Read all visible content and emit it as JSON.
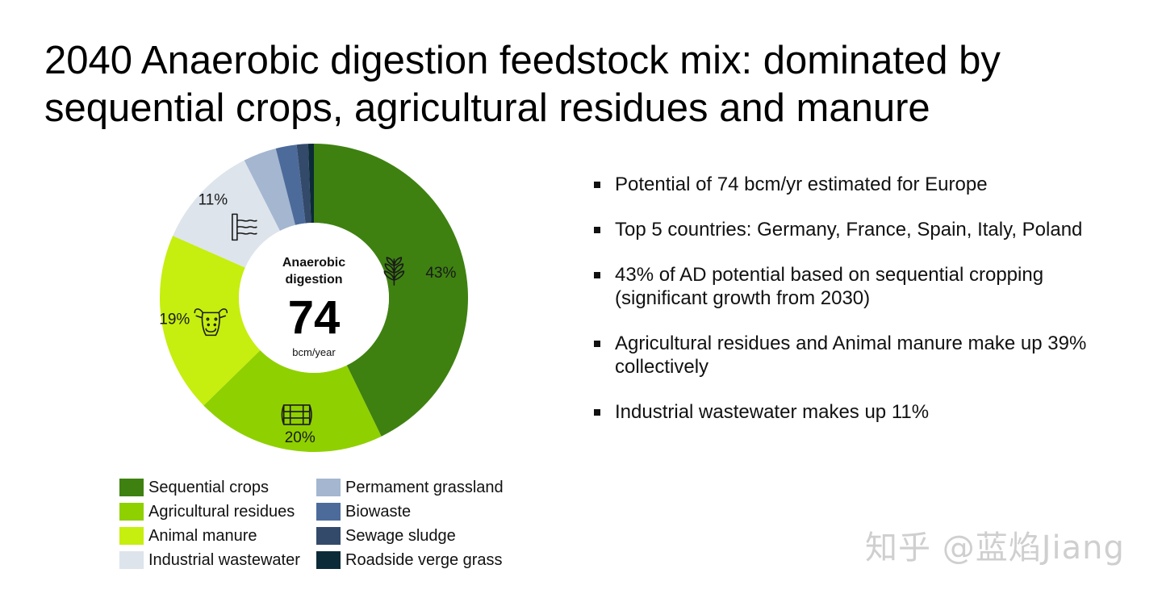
{
  "title": "2040 Anaerobic digestion feedstock mix: dominated by sequential crops, agricultural residues and manure",
  "chart_data": {
    "type": "pie",
    "donut": true,
    "center": {
      "label_line1": "Anaerobic",
      "label_line2": "digestion",
      "value": "74",
      "unit": "bcm/year"
    },
    "slices": [
      {
        "name": "Sequential crops",
        "value": 43,
        "label": "43%",
        "color": "#3e8111",
        "icon": "plant-icon"
      },
      {
        "name": "Agricultural residues",
        "value": 20,
        "label": "20%",
        "color": "#8fd000",
        "icon": "barrel-icon"
      },
      {
        "name": "Animal manure",
        "value": 19,
        "label": "19%",
        "color": "#c6ee0f",
        "icon": "cow-icon"
      },
      {
        "name": "Industrial wastewater",
        "value": 11,
        "label": "11%",
        "color": "#dde4ec",
        "icon": "wastewater-icon"
      },
      {
        "name": "Permament grassland",
        "value": 3.5,
        "label": "",
        "color": "#a4b6d0",
        "icon": ""
      },
      {
        "name": "Biowaste",
        "value": 2.2,
        "label": "",
        "color": "#4c6b9a",
        "icon": ""
      },
      {
        "name": "Sewage sludge",
        "value": 1.2,
        "label": "",
        "color": "#334a6a",
        "icon": ""
      },
      {
        "name": "Roadside verge grass",
        "value": 0.6,
        "label": "",
        "color": "#0c2b38",
        "icon": ""
      }
    ],
    "legend": [
      "Sequential crops",
      "Agricultural residues",
      "Animal manure",
      "Industrial wastewater",
      "Permament grassland",
      "Biowaste",
      "Sewage sludge",
      "Roadside verge grass"
    ]
  },
  "bullets": [
    "Potential of 74 bcm/yr estimated for Europe",
    "Top 5 countries: Germany, France, Spain, Italy, Poland",
    "43% of AD potential based on sequential cropping (significant growth from 2030)",
    "Agricultural residues and Animal manure make up 39% collectively",
    "Industrial wastewater makes up 11%"
  ],
  "watermark": "知乎 @蓝焰Jiang"
}
